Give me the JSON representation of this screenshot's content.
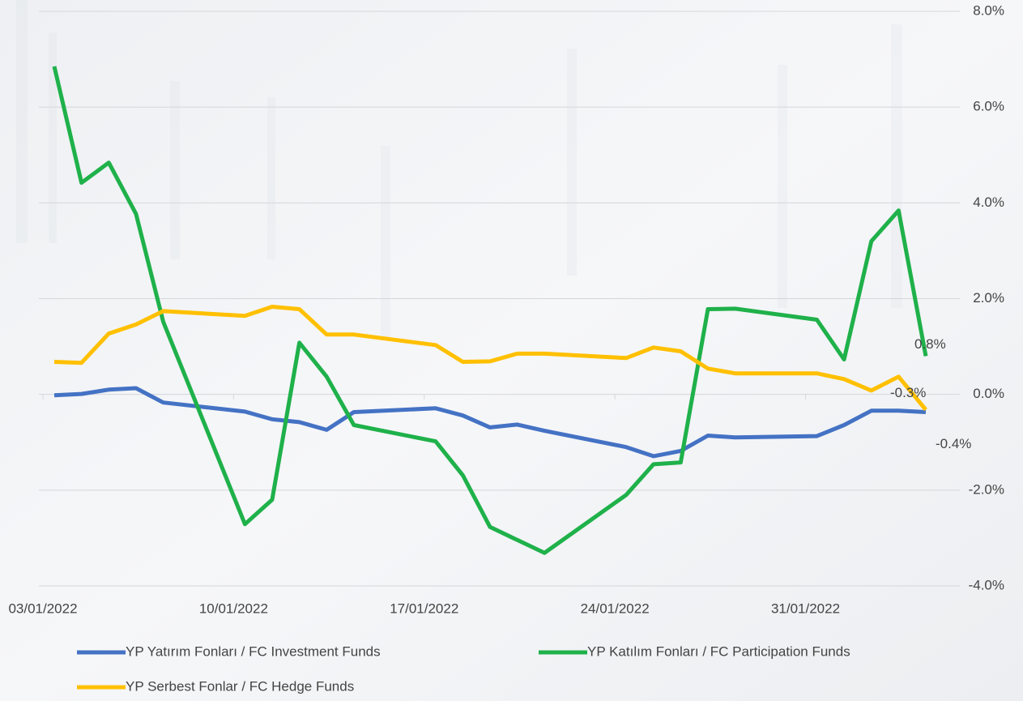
{
  "chart_data": {
    "type": "line",
    "x": [
      "03/01/2022",
      "04/01/2022",
      "05/01/2022",
      "06/01/2022",
      "07/01/2022",
      "10/01/2022",
      "11/01/2022",
      "12/01/2022",
      "13/01/2022",
      "14/01/2022",
      "17/01/2022",
      "18/01/2022",
      "19/01/2022",
      "20/01/2022",
      "21/01/2022",
      "24/01/2022",
      "25/01/2022",
      "26/01/2022",
      "27/01/2022",
      "28/01/2022",
      "31/01/2022",
      "01/02/2022",
      "02/02/2022",
      "03/02/2022",
      "04/02/2022"
    ],
    "xlim": [
      "03/01/2022",
      "04/02/2022"
    ],
    "xticks": [
      "03/01/2022",
      "10/01/2022",
      "17/01/2022",
      "24/01/2022",
      "31/01/2022"
    ],
    "ylim": [
      -4,
      8
    ],
    "yticks": [
      {
        "value": 8,
        "label": "8.0%"
      },
      {
        "value": 6,
        "label": "6.0%"
      },
      {
        "value": 4,
        "label": "4.0%"
      },
      {
        "value": 2,
        "label": "2.0%"
      },
      {
        "value": 0,
        "label": "0.0%"
      },
      {
        "value": -2,
        "label": "-2.0%"
      },
      {
        "value": -4,
        "label": "-4.0%"
      }
    ],
    "grid": true,
    "legend": "bottom",
    "series": [
      {
        "name": "YP Yatırım Fonları / FC Investment Funds",
        "color": "#4472c4",
        "values": [
          -0.02,
          0.01,
          0.1,
          0.13,
          -0.17,
          -0.36,
          -0.52,
          -0.58,
          -0.74,
          -0.37,
          -0.29,
          -0.44,
          -0.69,
          -0.63,
          -0.76,
          -1.1,
          -1.29,
          -1.18,
          -0.86,
          -0.9,
          -0.87,
          -0.64,
          -0.34,
          -0.34,
          -0.37
        ],
        "value_labels": [
          null,
          null,
          null,
          null,
          null,
          null,
          null,
          null,
          null,
          null,
          null,
          null,
          null,
          null,
          null,
          null,
          null,
          null,
          null,
          null,
          null,
          null,
          null,
          null,
          "-0.4%"
        ]
      },
      {
        "name": "YP Katılım Fonları / FC Participation Funds",
        "color": "#1fb14a",
        "values": [
          6.85,
          4.42,
          4.84,
          3.77,
          1.52,
          -2.71,
          -2.2,
          1.08,
          0.37,
          -0.64,
          -0.98,
          -1.69,
          -2.77,
          -3.04,
          -3.31,
          -2.1,
          -1.46,
          -1.42,
          1.78,
          1.79,
          1.56,
          0.73,
          3.2,
          3.84,
          0.8
        ],
        "value_labels": [
          null,
          null,
          null,
          null,
          null,
          null,
          null,
          null,
          null,
          null,
          null,
          null,
          null,
          null,
          null,
          null,
          null,
          null,
          null,
          null,
          null,
          null,
          null,
          null,
          "0.8%"
        ]
      },
      {
        "name": "YP Serbest Fonlar / FC Hedge Funds",
        "color": "#ffc000",
        "values": [
          0.68,
          0.66,
          1.27,
          1.46,
          1.74,
          1.64,
          1.83,
          1.78,
          1.25,
          1.25,
          1.03,
          0.68,
          0.69,
          0.85,
          0.85,
          0.76,
          0.98,
          0.9,
          0.54,
          0.44,
          0.44,
          0.32,
          0.08,
          0.37,
          -0.32
        ],
        "value_labels": [
          null,
          null,
          null,
          null,
          null,
          null,
          null,
          null,
          null,
          null,
          null,
          null,
          null,
          null,
          null,
          null,
          null,
          null,
          null,
          null,
          null,
          null,
          null,
          null,
          "-0.3%"
        ]
      }
    ]
  }
}
